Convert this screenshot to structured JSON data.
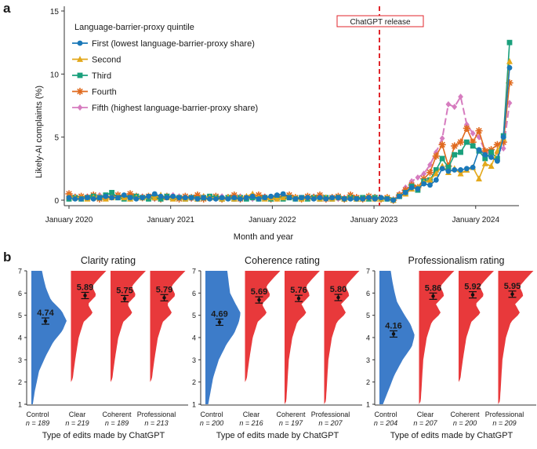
{
  "panel_a": {
    "letter": "a",
    "ylabel": "Likely-AI complaints (%)",
    "xlabel": "Month and year",
    "yticks": [
      "0",
      "5",
      "10",
      "15"
    ],
    "xticks": [
      "January 2020",
      "January 2021",
      "January 2022",
      "January 2023",
      "January 2024"
    ],
    "annotation": "ChatGPT release",
    "legend_title": "Language-barrier-proxy quintile"
  },
  "panel_b": {
    "letter": "b",
    "xlabel": "Type of edits made by ChatGPT",
    "yticks": [
      "1",
      "2",
      "3",
      "4",
      "5",
      "6",
      "7"
    ]
  },
  "chart_data": [
    {
      "type": "line",
      "title": "",
      "xlabel": "Month and year",
      "ylabel": "Likely-AI complaints (%)",
      "ylim": [
        0,
        15
      ],
      "x_range": [
        "2020-01",
        "2024-04"
      ],
      "annotations": [
        {
          "label": "ChatGPT release",
          "x": "2022-11"
        }
      ],
      "legend": "top-left",
      "series": [
        {
          "name": "First (lowest language-barrier-proxy share)",
          "color": "#1a78b8",
          "marker": "circle",
          "values": [
            0.2,
            0.1,
            0.1,
            0.2,
            0.1,
            0.2,
            0.3,
            0.2,
            0.2,
            0.4,
            0.2,
            0.1,
            0.2,
            0.3,
            0.5,
            0.3,
            0.2,
            0.3,
            0.2,
            0.2,
            0.2,
            0.1,
            0.2,
            0.1,
            0.1,
            0.2,
            0.1,
            0.2,
            0.1,
            0.2,
            0.3,
            0.1,
            0.2,
            0.3,
            0.4,
            0.5,
            0.2,
            0.1,
            0.2,
            0.2,
            0.1,
            0.2,
            0.1,
            0.2,
            0.2,
            0.1,
            0.1,
            0.1,
            0.1,
            0.2,
            0.1,
            0.2,
            0.1,
            0.0,
            0.3,
            0.6,
            1.0,
            0.9,
            1.3,
            1.2,
            1.6,
            2.5,
            2.3,
            2.4,
            2.4,
            2.5,
            2.6,
            4.0,
            3.6,
            3.4,
            3.1,
            5.0,
            10.5
          ]
        },
        {
          "name": "Second",
          "color": "#e3a81b",
          "marker": "triangle",
          "values": [
            0.3,
            0.2,
            0.2,
            0.1,
            0.2,
            0.3,
            0.1,
            0.2,
            0.3,
            0.2,
            0.1,
            0.2,
            0.2,
            0.3,
            0.2,
            0.4,
            0.2,
            0.1,
            0.2,
            0.1,
            0.2,
            0.1,
            0.3,
            0.2,
            0.2,
            0.1,
            0.2,
            0.1,
            0.2,
            0.3,
            0.5,
            0.2,
            0.1,
            0.2,
            0.1,
            0.2,
            0.3,
            0.2,
            0.1,
            0.2,
            0.2,
            0.1,
            0.2,
            0.1,
            0.2,
            0.1,
            0.2,
            0.1,
            0.1,
            0.2,
            0.1,
            0.1,
            0.2,
            0.0,
            0.4,
            0.5,
            0.9,
            1.0,
            1.4,
            1.6,
            2.1,
            2.7,
            2.2,
            2.5,
            2.1,
            2.4,
            2.6,
            1.7,
            2.9,
            2.7,
            3.9,
            4.9,
            11.0
          ]
        },
        {
          "name": "Third",
          "color": "#1aa07c",
          "marker": "square",
          "values": [
            0.1,
            0.2,
            0.1,
            0.2,
            0.3,
            0.2,
            0.4,
            0.6,
            0.2,
            0.1,
            0.2,
            0.3,
            0.2,
            0.1,
            0.2,
            0.1,
            0.3,
            0.2,
            0.2,
            0.1,
            0.2,
            0.1,
            0.2,
            0.3,
            0.2,
            0.1,
            0.2,
            0.1,
            0.2,
            0.1,
            0.2,
            0.1,
            0.2,
            0.1,
            0.2,
            0.1,
            0.2,
            0.1,
            0.2,
            0.1,
            0.2,
            0.1,
            0.2,
            0.1,
            0.2,
            0.1,
            0.2,
            0.1,
            0.2,
            0.1,
            0.2,
            0.1,
            0.1,
            0.0,
            0.3,
            0.6,
            1.1,
            0.8,
            1.5,
            1.6,
            2.4,
            3.3,
            2.6,
            3.6,
            3.8,
            4.6,
            4.3,
            3.9,
            3.3,
            3.8,
            3.3,
            5.1,
            12.5
          ]
        },
        {
          "name": "Fourth",
          "color": "#e06a1e",
          "marker": "star",
          "values": [
            0.5,
            0.2,
            0.3,
            0.2,
            0.4,
            0.1,
            0.2,
            0.3,
            0.4,
            0.2,
            0.5,
            0.3,
            0.2,
            0.3,
            0.2,
            0.1,
            0.3,
            0.2,
            0.1,
            0.3,
            0.2,
            0.4,
            0.1,
            0.2,
            0.3,
            0.1,
            0.2,
            0.4,
            0.1,
            0.2,
            0.3,
            0.4,
            0.2,
            0.1,
            0.3,
            0.2,
            0.4,
            0.2,
            0.1,
            0.3,
            0.2,
            0.4,
            0.1,
            0.2,
            0.3,
            0.1,
            0.4,
            0.2,
            0.1,
            0.3,
            0.2,
            0.1,
            0.2,
            0.0,
            0.4,
            0.8,
            1.2,
            1.0,
            1.7,
            2.2,
            3.5,
            4.4,
            2.7,
            4.3,
            4.6,
            5.7,
            4.6,
            5.5,
            3.9,
            4.0,
            4.4,
            4.6,
            9.3
          ]
        },
        {
          "name": "Fifth (highest language-barrier-proxy share)",
          "color": "#d67cbf",
          "marker": "diamond",
          "values": [
            0.1,
            0.3,
            0.2,
            0.3,
            0.2,
            0.4,
            0.3,
            0.2,
            0.4,
            0.3,
            0.1,
            0.2,
            0.3,
            0.2,
            0.1,
            0.3,
            0.2,
            0.4,
            0.3,
            0.2,
            0.1,
            0.2,
            0.3,
            0.2,
            0.1,
            0.3,
            0.2,
            0.1,
            0.3,
            0.2,
            0.1,
            0.2,
            0.3,
            0.2,
            0.1,
            0.2,
            0.3,
            0.2,
            0.1,
            0.2,
            0.3,
            0.2,
            0.1,
            0.2,
            0.1,
            0.2,
            0.3,
            0.2,
            0.1,
            0.2,
            0.1,
            0.2,
            0.1,
            0.0,
            0.5,
            1.0,
            1.5,
            1.8,
            2.1,
            2.8,
            3.8,
            4.9,
            7.6,
            7.4,
            8.2,
            6.0,
            5.3,
            5.0,
            3.9,
            3.6,
            3.8,
            4.1,
            7.7
          ]
        }
      ]
    },
    {
      "type": "violin",
      "title": "Clarity rating",
      "xlabel": "Type of edits made by ChatGPT",
      "ylim": [
        1,
        7
      ],
      "categories": [
        "Control",
        "Clear",
        "Coherent",
        "Professional"
      ],
      "n_labels": [
        "n = 189",
        "n = 219",
        "n = 189",
        "n = 213"
      ],
      "means": [
        4.74,
        5.89,
        5.75,
        5.79
      ],
      "mean_labels": [
        "4.74",
        "5.89",
        "5.75",
        "5.79"
      ],
      "colors": [
        "#3d7cc9",
        "#e8393b",
        "#e8393b",
        "#e8393b"
      ]
    },
    {
      "type": "violin",
      "title": "Coherence rating",
      "xlabel": "Type of edits made by ChatGPT",
      "ylim": [
        1,
        7
      ],
      "categories": [
        "Control",
        "Clear",
        "Coherent",
        "Professional"
      ],
      "n_labels": [
        "n = 200",
        "n = 216",
        "n = 197",
        "n = 207"
      ],
      "means": [
        4.69,
        5.69,
        5.76,
        5.8
      ],
      "mean_labels": [
        "4.69",
        "5.69",
        "5.76",
        "5.80"
      ],
      "colors": [
        "#3d7cc9",
        "#e8393b",
        "#e8393b",
        "#e8393b"
      ]
    },
    {
      "type": "violin",
      "title": "Professionalism rating",
      "xlabel": "Type of edits made by ChatGPT",
      "ylim": [
        1,
        7
      ],
      "categories": [
        "Control",
        "Clear",
        "Coherent",
        "Professional"
      ],
      "n_labels": [
        "n = 204",
        "n = 207",
        "n = 200",
        "n = 209"
      ],
      "means": [
        4.16,
        5.86,
        5.92,
        5.95
      ],
      "mean_labels": [
        "4.16",
        "5.86",
        "5.92",
        "5.95"
      ],
      "colors": [
        "#3d7cc9",
        "#e8393b",
        "#e8393b",
        "#e8393b"
      ]
    }
  ]
}
